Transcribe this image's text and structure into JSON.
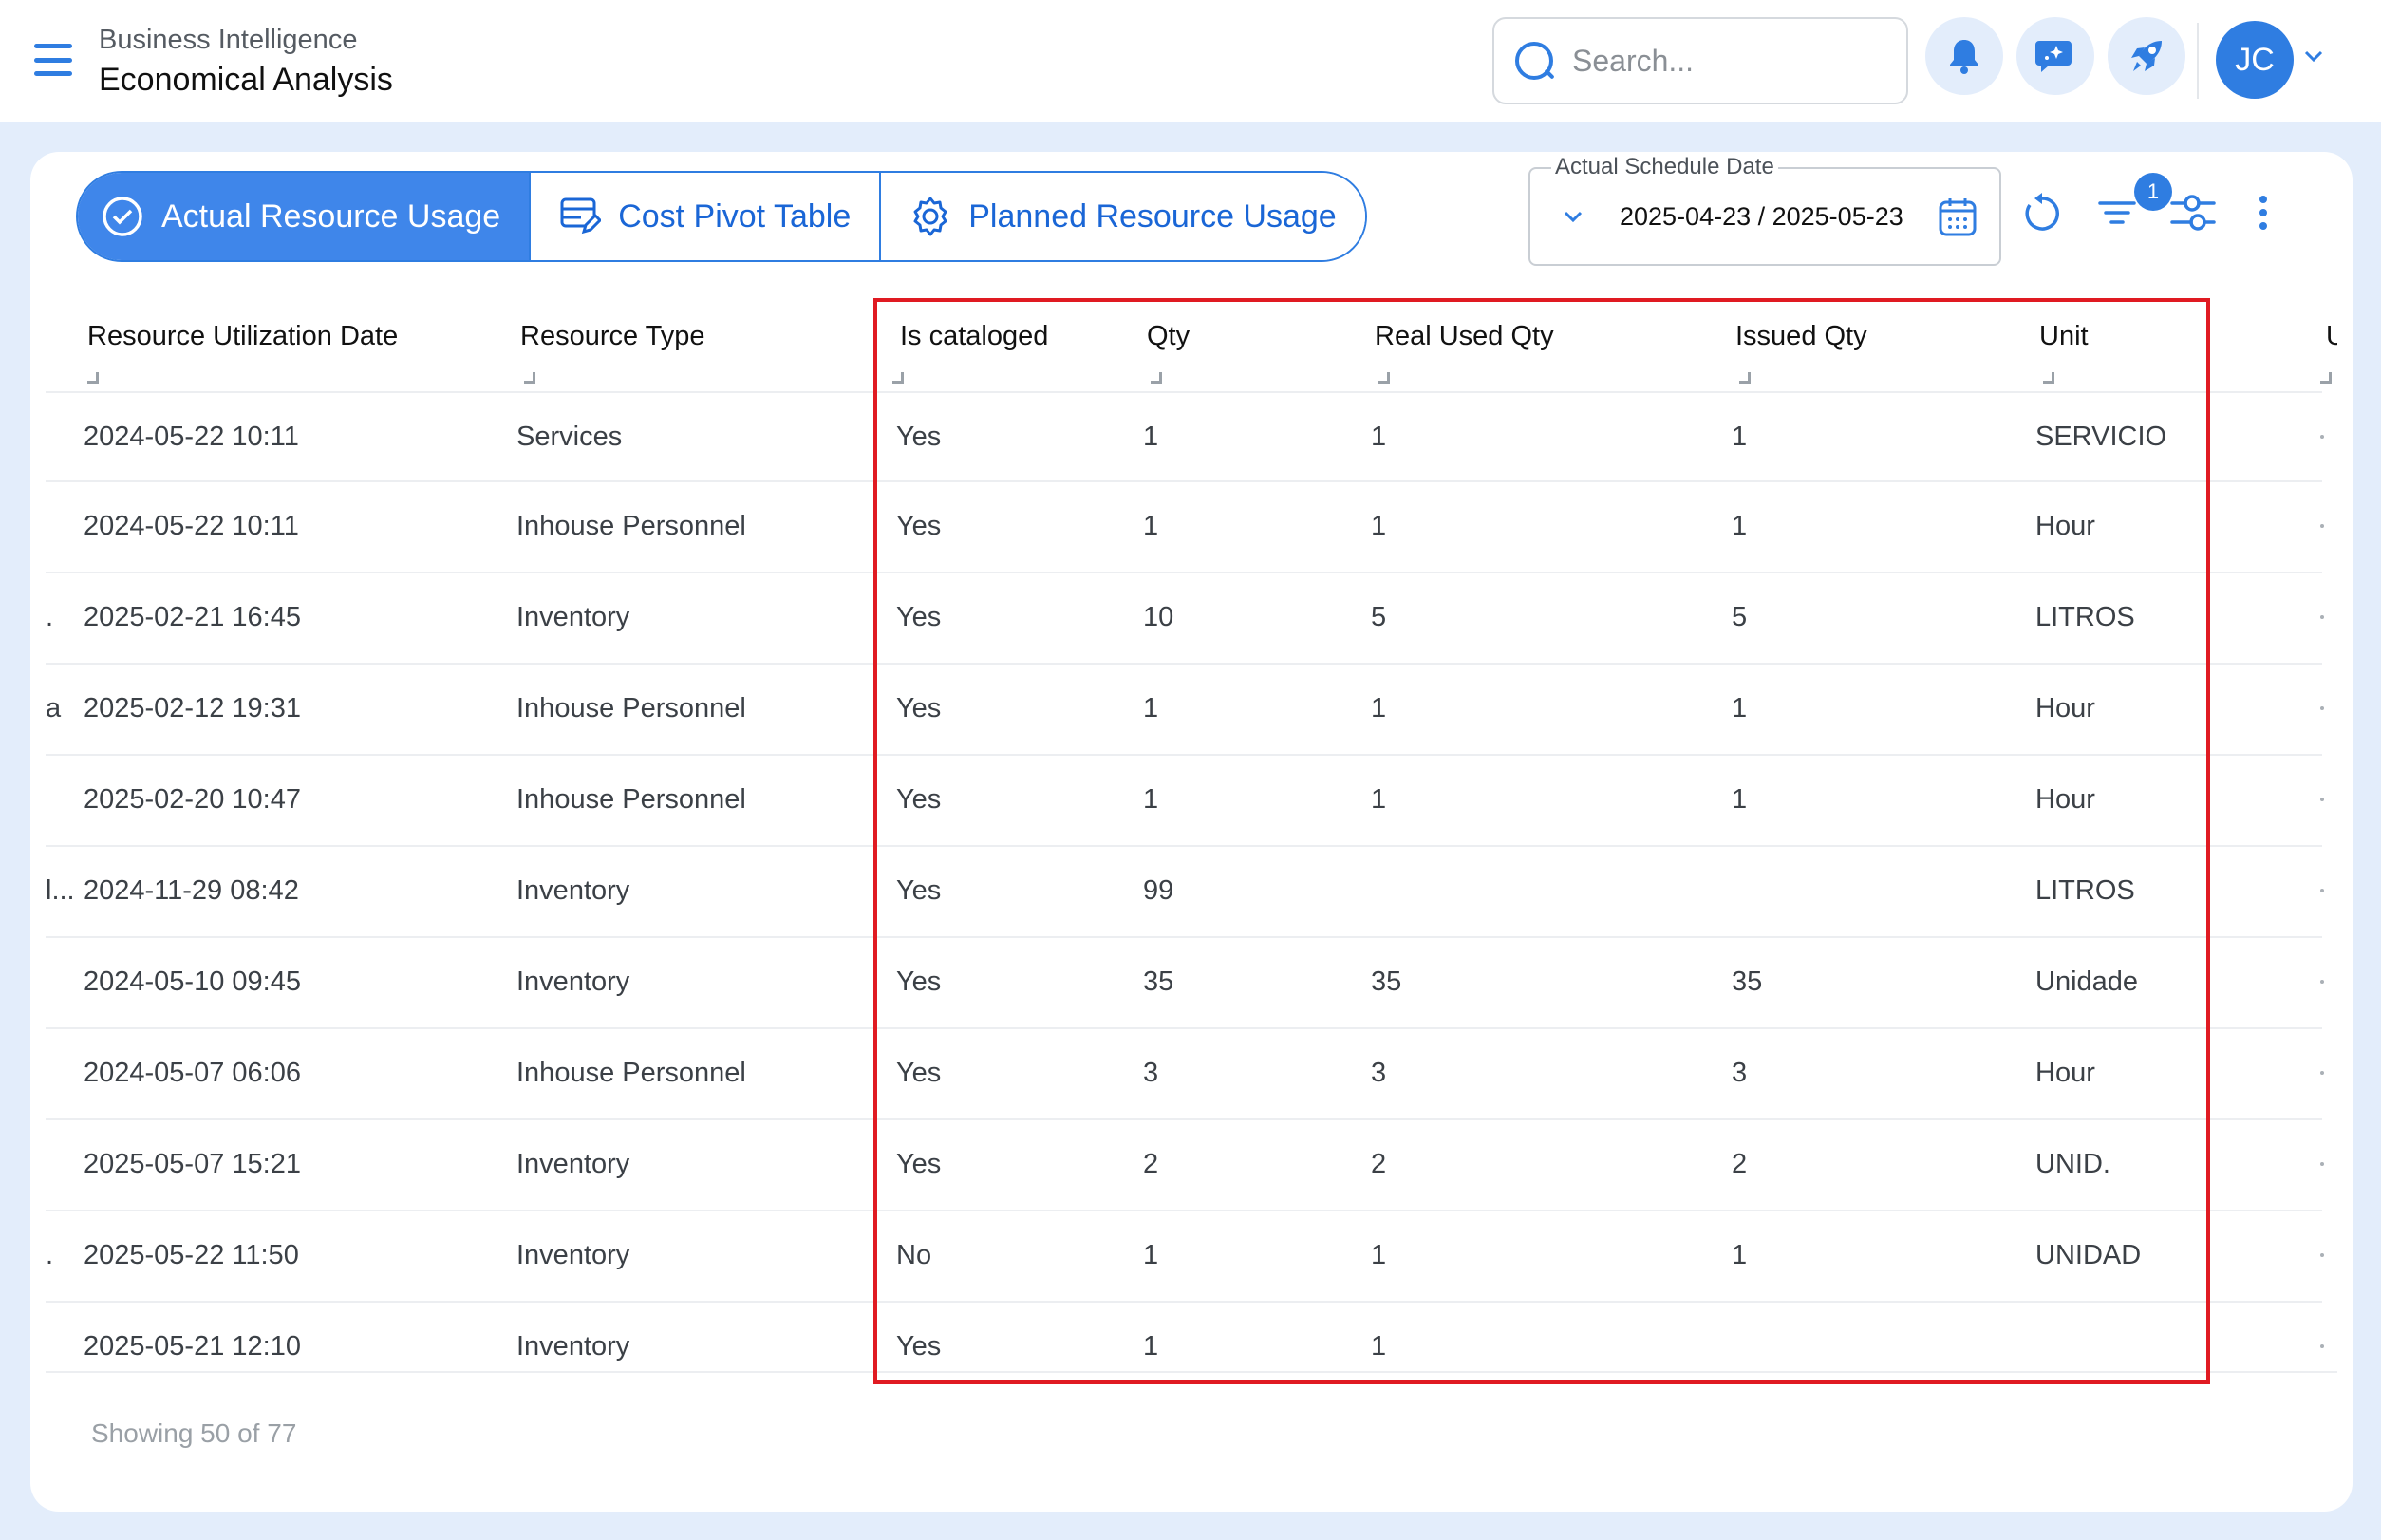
{
  "header": {
    "app_subtitle": "Business Intelligence",
    "app_title": "Economical Analysis",
    "search_placeholder": "Search...",
    "user_initials": "JC",
    "notification_badge": "1"
  },
  "tabs": [
    {
      "label": "Actual Resource Usage",
      "icon": "check-circle-icon",
      "active": true
    },
    {
      "label": "Cost Pivot Table",
      "icon": "table-edit-icon",
      "active": false
    },
    {
      "label": "Planned Resource Usage",
      "icon": "gear-icon",
      "active": false
    }
  ],
  "date_filter": {
    "label": "Actual Schedule Date",
    "value": "2025-04-23 / 2025-05-23"
  },
  "table": {
    "columns": [
      "Resource Utilization Date",
      "Resource Type",
      "Is cataloged",
      "Qty",
      "Real Used Qty",
      "Issued Qty",
      "Unit",
      "U"
    ],
    "rows": [
      {
        "lead": "",
        "date": "2024-05-22 10:11",
        "type": "Services",
        "cataloged": "Yes",
        "qty": "1",
        "real": "1",
        "issued": "1",
        "unit": "SERVICIO"
      },
      {
        "lead": "",
        "date": "2024-05-22 10:11",
        "type": "Inhouse Personnel",
        "cataloged": "Yes",
        "qty": "1",
        "real": "1",
        "issued": "1",
        "unit": "Hour"
      },
      {
        "lead": ".",
        "date": "2025-02-21 16:45",
        "type": "Inventory",
        "cataloged": "Yes",
        "qty": "10",
        "real": "5",
        "issued": "5",
        "unit": "LITROS"
      },
      {
        "lead": "a",
        "date": "2025-02-12 19:31",
        "type": "Inhouse Personnel",
        "cataloged": "Yes",
        "qty": "1",
        "real": "1",
        "issued": "1",
        "unit": "Hour"
      },
      {
        "lead": "",
        "date": "2025-02-20 10:47",
        "type": "Inhouse Personnel",
        "cataloged": "Yes",
        "qty": "1",
        "real": "1",
        "issued": "1",
        "unit": "Hour"
      },
      {
        "lead": "l...",
        "date": "2024-11-29 08:42",
        "type": "Inventory",
        "cataloged": "Yes",
        "qty": "99",
        "real": "",
        "issued": "",
        "unit": "LITROS"
      },
      {
        "lead": "",
        "date": "2024-05-10 09:45",
        "type": "Inventory",
        "cataloged": "Yes",
        "qty": "35",
        "real": "35",
        "issued": "35",
        "unit": "Unidade"
      },
      {
        "lead": "",
        "date": "2024-05-07 06:06",
        "type": "Inhouse Personnel",
        "cataloged": "Yes",
        "qty": "3",
        "real": "3",
        "issued": "3",
        "unit": "Hour"
      },
      {
        "lead": "",
        "date": "2025-05-07 15:21",
        "type": "Inventory",
        "cataloged": "Yes",
        "qty": "2",
        "real": "2",
        "issued": "2",
        "unit": "UNID."
      },
      {
        "lead": ".",
        "date": "2025-05-22 11:50",
        "type": "Inventory",
        "cataloged": "No",
        "qty": "1",
        "real": "1",
        "issued": "1",
        "unit": "UNIDAD"
      },
      {
        "lead": "",
        "date": "2025-05-21 12:10",
        "type": "Inventory",
        "cataloged": "Yes",
        "qty": "1",
        "real": "1",
        "issued": "",
        "unit": ""
      }
    ]
  },
  "footer": {
    "showing": "Showing 50 of 77"
  },
  "colors": {
    "accent": "#2f7de1",
    "highlight": "#e01a22",
    "background": "#e3edfb"
  }
}
